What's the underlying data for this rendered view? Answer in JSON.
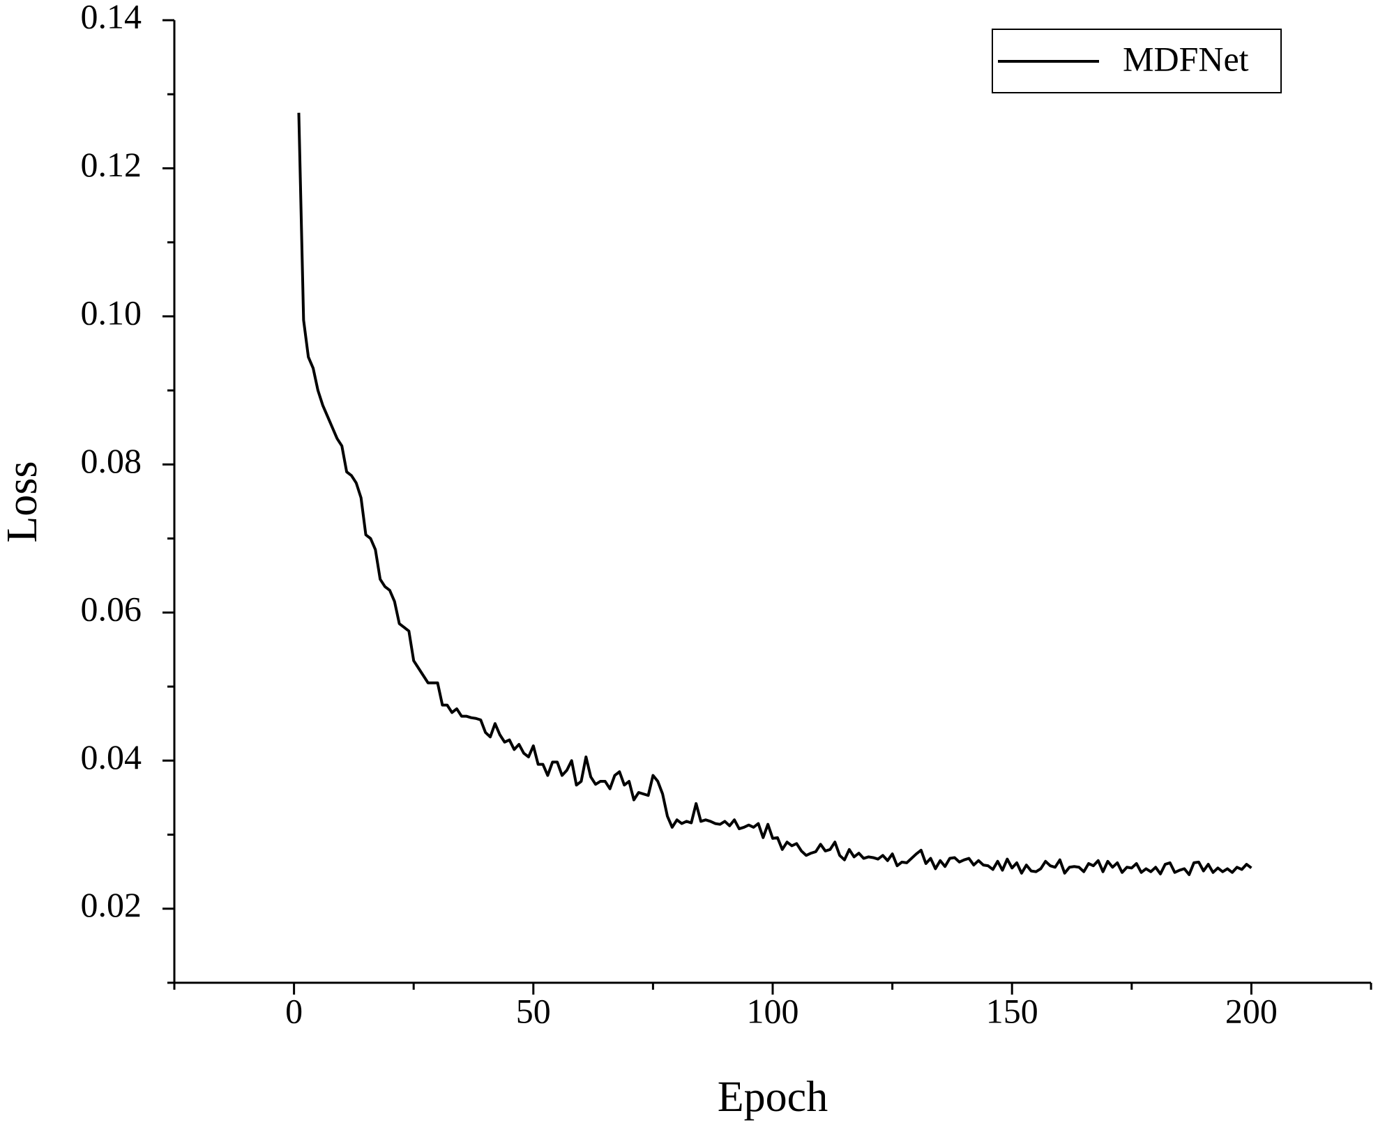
{
  "chart_data": {
    "type": "line",
    "x_label": "Epoch",
    "y_label": "Loss",
    "xlim": [
      -25,
      225
    ],
    "xticks": [
      0,
      50,
      100,
      150,
      200
    ],
    "xminor_ticks": [
      -25,
      25,
      75,
      125,
      175,
      225
    ],
    "ylim": [
      0.01,
      0.14
    ],
    "yticks": [
      0.02,
      0.04,
      0.06,
      0.08,
      {
        "value": 0.1,
        "label": "0.10"
      },
      0.12,
      0.14
    ],
    "yminor_ticks": [
      0.01,
      0.03,
      0.05,
      0.07,
      0.09,
      0.11,
      0.13
    ],
    "legend": "upper right",
    "x": [
      1,
      2,
      3,
      4,
      5,
      6,
      7,
      8,
      9,
      10,
      11,
      12,
      13,
      14,
      15,
      16,
      17,
      18,
      19,
      20,
      21,
      22,
      23,
      24,
      25,
      26,
      27,
      28,
      29,
      30,
      31,
      32,
      33,
      34,
      35,
      36,
      37,
      38,
      39,
      40,
      41,
      42,
      43,
      44,
      45,
      46,
      47,
      48,
      49,
      50,
      51,
      52,
      53,
      54,
      55,
      56,
      57,
      58,
      59,
      60,
      61,
      62,
      63,
      64,
      65,
      66,
      67,
      68,
      69,
      70,
      71,
      72,
      73,
      74,
      75,
      76,
      77,
      78,
      79,
      80,
      81,
      82,
      83,
      84,
      85,
      86,
      87,
      88,
      89,
      90,
      91,
      92,
      93,
      94,
      95,
      96,
      97,
      98,
      99,
      100,
      101,
      102,
      103,
      104,
      105,
      106,
      107,
      108,
      109,
      110,
      111,
      112,
      113,
      114,
      115,
      116,
      117,
      118,
      119,
      120,
      121,
      122,
      123,
      124,
      125,
      126,
      127,
      128,
      129,
      130,
      131,
      132,
      133,
      134,
      135,
      136,
      137,
      138,
      139,
      140,
      141,
      142,
      143,
      144,
      145,
      146,
      147,
      148,
      149,
      150,
      151,
      152,
      153,
      154,
      155,
      156,
      157,
      158,
      159,
      160,
      161,
      162,
      163,
      164,
      165,
      166,
      167,
      168,
      169,
      170,
      171,
      172,
      173,
      174,
      175,
      176,
      177,
      178,
      179,
      180,
      181,
      182,
      183,
      184,
      185,
      186,
      187,
      188,
      189,
      190,
      191,
      192,
      193,
      194,
      195,
      196,
      197,
      198,
      199,
      200
    ],
    "series": [
      {
        "name": "MDFNet",
        "color": "#000000",
        "values": [
          0.1275,
          0.0995,
          0.0945,
          0.093,
          0.09,
          0.088,
          0.0865,
          0.085,
          0.0835,
          0.0825,
          0.079,
          0.0785,
          0.0775,
          0.0755,
          0.0705,
          0.07,
          0.0685,
          0.0645,
          0.0635,
          0.063,
          0.0615,
          0.0585,
          0.058,
          0.0575,
          0.0535,
          0.0525,
          0.0515,
          0.0505,
          0.0505,
          0.0505,
          0.0475,
          0.0475,
          0.0465,
          0.047,
          0.046,
          0.046,
          0.0458,
          0.0457,
          0.0455,
          0.0438,
          0.0432,
          0.045,
          0.0435,
          0.0425,
          0.0428,
          0.0415,
          0.0422,
          0.041,
          0.0405,
          0.042,
          0.0395,
          0.0395,
          0.038,
          0.0398,
          0.0398,
          0.038,
          0.0387,
          0.04,
          0.0367,
          0.0372,
          0.0405,
          0.0378,
          0.0368,
          0.0372,
          0.0372,
          0.0362,
          0.038,
          0.0385,
          0.0367,
          0.0372,
          0.0347,
          0.0357,
          0.0355,
          0.0353,
          0.038,
          0.0372,
          0.0355,
          0.0325,
          0.031,
          0.032,
          0.0315,
          0.0318,
          0.0316,
          0.0342,
          0.0318,
          0.032,
          0.0318,
          0.0315,
          0.0314,
          0.0318,
          0.0312,
          0.032,
          0.0308,
          0.031,
          0.0313,
          0.031,
          0.0315,
          0.0296,
          0.0314,
          0.0295,
          0.0296,
          0.028,
          0.029,
          0.0285,
          0.0288,
          0.0278,
          0.0272,
          0.0275,
          0.0277,
          0.0287,
          0.0278,
          0.028,
          0.029,
          0.0272,
          0.0266,
          0.028,
          0.027,
          0.0275,
          0.0268,
          0.027,
          0.0269,
          0.0267,
          0.0272,
          0.0265,
          0.0274,
          0.0258,
          0.0263,
          0.0262,
          0.0268,
          0.0274,
          0.0279,
          0.0261,
          0.0268,
          0.0254,
          0.0265,
          0.0257,
          0.0268,
          0.0269,
          0.0263,
          0.0266,
          0.0268,
          0.0259,
          0.0265,
          0.0259,
          0.0258,
          0.0253,
          0.0264,
          0.0252,
          0.0267,
          0.0255,
          0.0262,
          0.0248,
          0.0259,
          0.0251,
          0.025,
          0.0254,
          0.0264,
          0.0258,
          0.0256,
          0.0266,
          0.0248,
          0.0256,
          0.0257,
          0.0256,
          0.025,
          0.0261,
          0.0258,
          0.0265,
          0.025,
          0.0264,
          0.0256,
          0.0262,
          0.0249,
          0.0256,
          0.0255,
          0.0261,
          0.0249,
          0.0254,
          0.025,
          0.0256,
          0.0247,
          0.026,
          0.0262,
          0.0249,
          0.0252,
          0.0254,
          0.0246,
          0.0262,
          0.0263,
          0.0251,
          0.026,
          0.0249,
          0.0255,
          0.025,
          0.0254,
          0.0249,
          0.0256,
          0.0253,
          0.026,
          0.0255
        ]
      }
    ]
  }
}
